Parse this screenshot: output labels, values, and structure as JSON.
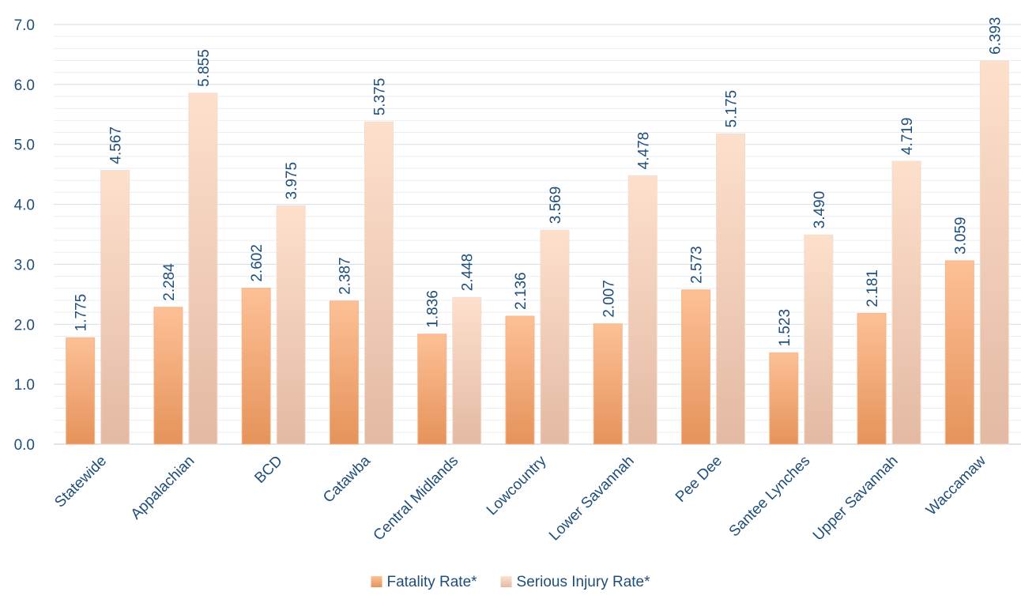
{
  "chart_data": {
    "type": "bar",
    "categories": [
      "Statewide",
      "Appalachian",
      "BCD",
      "Catawba",
      "Central Midlands",
      "Lowcountry",
      "Lower Savannah",
      "Pee Dee",
      "Santee Lynches",
      "Upper Savannah",
      "Waccamaw"
    ],
    "series": [
      {
        "name": "Fatality Rate*",
        "values": [
          1.775,
          2.284,
          2.602,
          2.387,
          1.836,
          2.136,
          2.007,
          2.573,
          1.523,
          2.181,
          3.059
        ],
        "labels": [
          "1.775",
          "2.284",
          "2.602",
          "2.387",
          "1.836",
          "2.136",
          "2.007",
          "2.573",
          "1.523",
          "2.181",
          "3.059"
        ],
        "color_top": "#fdc096",
        "color_bottom": "#e5935a"
      },
      {
        "name": "Serious Injury Rate*",
        "values": [
          4.567,
          5.855,
          3.975,
          5.375,
          2.448,
          3.569,
          4.478,
          5.175,
          3.49,
          4.719,
          6.393
        ],
        "labels": [
          "4.567",
          "5.855",
          "3.975",
          "5.375",
          "2.448",
          "3.569",
          "4.478",
          "5.175",
          "3.490",
          "4.719",
          "6.393"
        ],
        "color_top": "#fde0cc",
        "color_bottom": "#e3b9a3"
      }
    ],
    "yticks": [
      "0.0",
      "1.0",
      "2.0",
      "3.0",
      "4.0",
      "5.0",
      "6.0",
      "7.0"
    ],
    "ylim": [
      0,
      7
    ],
    "minor_grid_step": 0.2,
    "grid": true,
    "legend_position": "bottom",
    "text_color": "#1f4e79"
  }
}
